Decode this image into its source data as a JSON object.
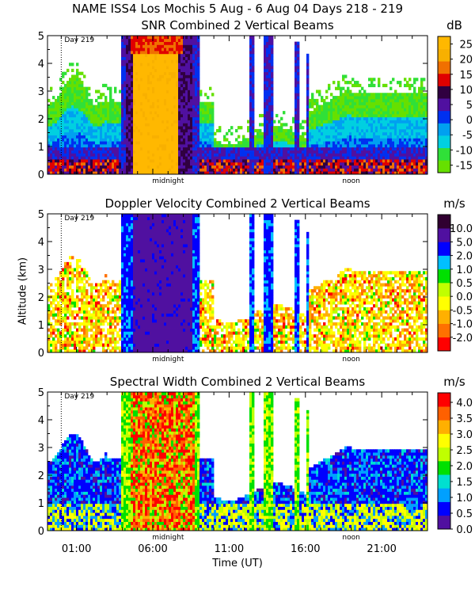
{
  "title": "NAME ISS4 Los Mochis   5 Aug -  6 Aug 04 Days 218 - 219",
  "ylabel": "Altitude (km)",
  "xlabel": "Time (UT)",
  "colors": {
    "snr_scale": [
      "#66e000",
      "#30e038",
      "#00d0e0",
      "#00a0f0",
      "#0030f0",
      "#5010a0",
      "#300040",
      "#e00000",
      "#f07000",
      "#f8b000",
      "#ffb800"
    ],
    "vel_scale": [
      "#ff0000",
      "#ff7000",
      "#ffb000",
      "#ffff00",
      "#c0ff00",
      "#00e000",
      "#00c0ff",
      "#0000ff",
      "#5010a0",
      "#300030"
    ],
    "sw_scale": [
      "#5010a0",
      "#0000ff",
      "#00a0ff",
      "#00e0d0",
      "#00e000",
      "#c0ff00",
      "#ffff00",
      "#ffb000",
      "#ff6000",
      "#ff0000"
    ]
  },
  "chart_data": [
    {
      "type": "heatmap",
      "title": "SNR Combined 2 Vertical Beams",
      "unit": "dB",
      "ylim": [
        0,
        5
      ],
      "yticks": [
        "0",
        "1",
        "2",
        "3",
        "4",
        "5"
      ],
      "xlim": [
        -0.9,
        24
      ],
      "xtick_hours": [
        1,
        6,
        11,
        16,
        21
      ],
      "annotations": [
        "Day 219",
        "midnight",
        "noon"
      ],
      "colorbar_labels": [
        "25",
        "20",
        "15",
        "10",
        "5",
        "0",
        "-5",
        "-10",
        "-15"
      ],
      "colorbar_range": [
        -17.5,
        27.5
      ],
      "mode": "snr"
    },
    {
      "type": "heatmap",
      "title": "Doppler Velocity Combined 2 Vertical Beams",
      "unit": "m/s",
      "ylim": [
        0,
        5
      ],
      "yticks": [
        "0",
        "1",
        "2",
        "3",
        "4",
        "5"
      ],
      "xlim": [
        -0.9,
        24
      ],
      "xtick_hours": [
        1,
        6,
        11,
        16,
        21
      ],
      "annotations": [
        "Day 219",
        "midnight",
        "noon"
      ],
      "colorbar_labels": [
        "10.0",
        "5.0",
        "2.0",
        "1.0",
        "0.5",
        "0.0",
        "-0.5",
        "-1.0",
        "-2.0"
      ],
      "mode": "vel"
    },
    {
      "type": "heatmap",
      "title": "Spectral Width Combined 2 Vertical Beams",
      "unit": "m/s",
      "ylim": [
        0,
        5
      ],
      "yticks": [
        "0",
        "1",
        "2",
        "3",
        "4",
        "5"
      ],
      "xlim": [
        -0.9,
        24
      ],
      "xtick_hours": [
        1,
        6,
        11,
        16,
        21
      ],
      "xtick_labels": [
        "01:00",
        "06:00",
        "11:00",
        "16:00",
        "21:00"
      ],
      "annotations": [
        "Day 219",
        "midnight",
        "noon"
      ],
      "colorbar_labels": [
        "4.0",
        "3.5",
        "3.0",
        "2.5",
        "2.0",
        "1.5",
        "1.0",
        "0.5",
        "0.0"
      ],
      "colorbar_range": [
        0,
        4.3
      ],
      "mode": "sw"
    }
  ]
}
